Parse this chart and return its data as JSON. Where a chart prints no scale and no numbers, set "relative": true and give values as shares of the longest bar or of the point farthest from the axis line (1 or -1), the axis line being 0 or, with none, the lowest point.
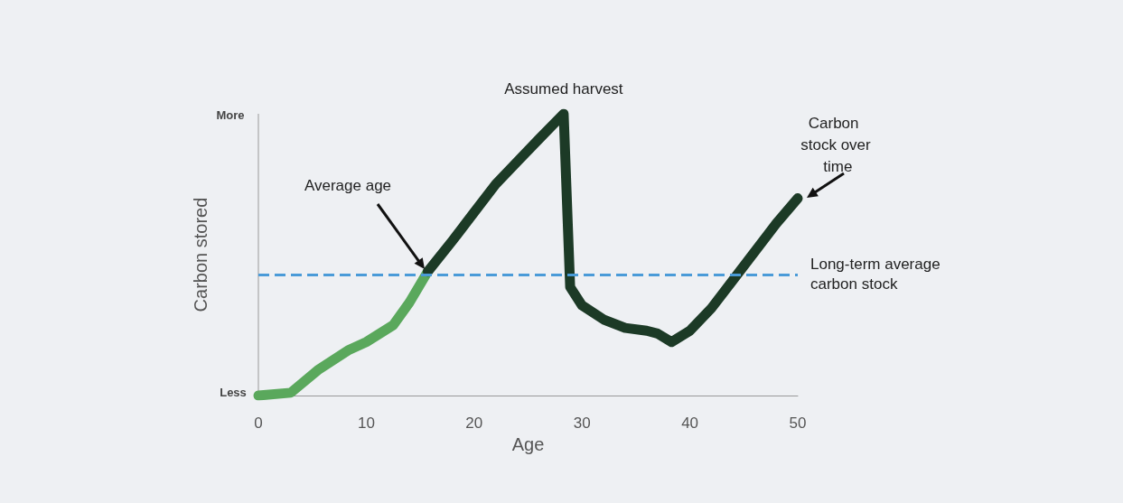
{
  "chart_data": {
    "type": "line",
    "xlabel": "Age",
    "ylabel": "Carbon stored",
    "relative": true,
    "series": [
      {
        "color": "#5aa85c",
        "x": [
          0,
          3,
          5.5,
          8.3,
          10,
          12.5,
          14,
          15.7
        ],
        "values": [
          0,
          0.01,
          0.09,
          0.16,
          0.19,
          0.25,
          0.33,
          0.44
        ]
      },
      {
        "color": "#1c3a26",
        "x": [
          15.7,
          18,
          20,
          22,
          24,
          26,
          28.3,
          28.9,
          30,
          32,
          34,
          36,
          37,
          38.3,
          40,
          42,
          44,
          46,
          48,
          50
        ],
        "values": [
          0.44,
          0.55,
          0.65,
          0.75,
          0.83,
          0.91,
          1,
          0.385,
          0.32,
          0.27,
          0.24,
          0.23,
          0.22,
          0.19,
          0.23,
          0.31,
          0.41,
          0.51,
          0.61,
          0.7
        ]
      }
    ],
    "xlim": [
      0,
      50
    ],
    "xticks": [
      0,
      10,
      20,
      30,
      40,
      50
    ],
    "ref_lines": [
      {
        "axis": "y",
        "value": 0.426,
        "label": "Long-term average carbon stock",
        "color": "#4a9bd8",
        "line_style": "dashed"
      }
    ],
    "annotations": [
      "More",
      "Less",
      {
        "text": "Assumed harvest",
        "x": 28.3,
        "y": 1
      },
      "Average age",
      "Carbon stock over time"
    ],
    "grid": false,
    "marker": "none",
    "line_style": "solid"
  }
}
